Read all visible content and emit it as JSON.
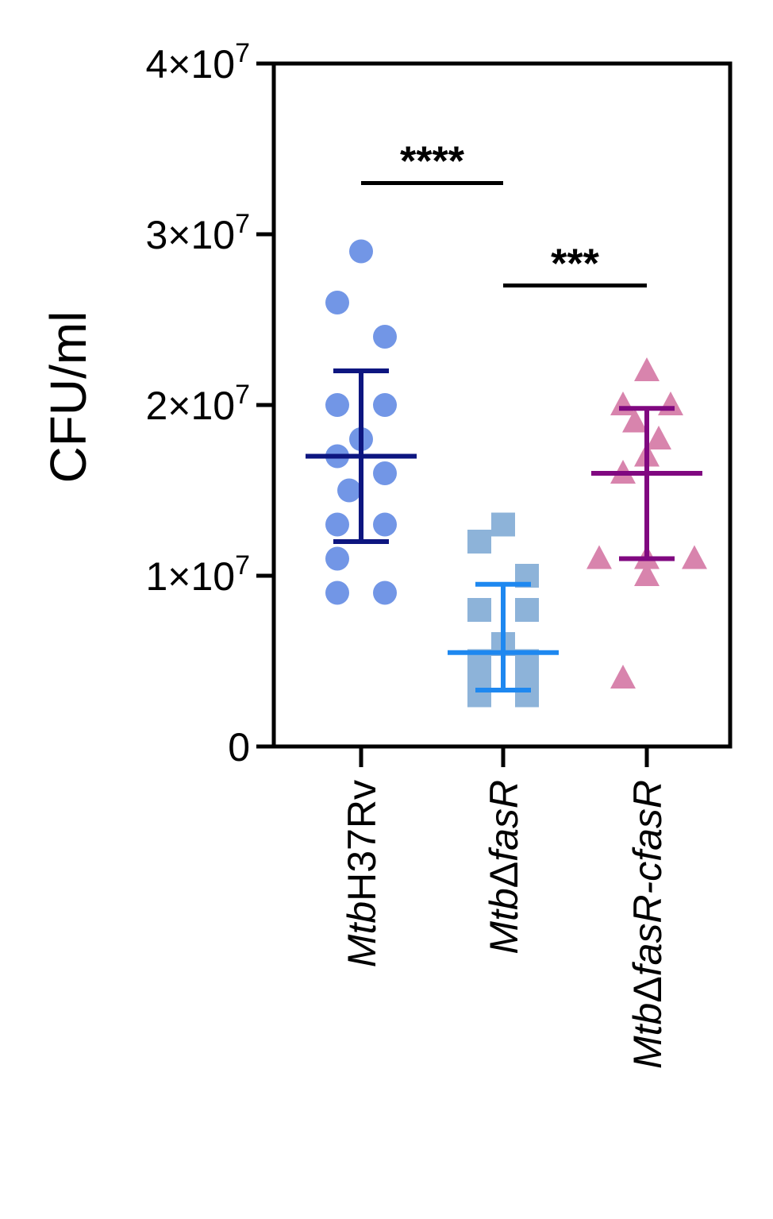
{
  "chart_data": {
    "type": "scatter",
    "ylabel": "CFU/ml",
    "ylim": [
      0,
      40000000
    ],
    "y_ticks": [
      {
        "value": 0,
        "base": "0",
        "exp": ""
      },
      {
        "value": 10000000,
        "base": "1×10",
        "exp": "7"
      },
      {
        "value": 20000000,
        "base": "2×10",
        "exp": "7"
      },
      {
        "value": 30000000,
        "base": "3×10",
        "exp": "7"
      },
      {
        "value": 40000000,
        "base": "4×10",
        "exp": "7"
      }
    ],
    "categories": [
      {
        "prefix": "Mtb",
        "main": "H37Rv",
        "suffix": "",
        "italic": [
          true,
          false,
          false
        ]
      },
      {
        "prefix": "Mtb",
        "main": "Δ",
        "suffix": "fasR",
        "italic": [
          true,
          false,
          true
        ]
      },
      {
        "prefix": "Mtb",
        "main": "Δ",
        "suffix": "fasR-cfasR",
        "italic": [
          true,
          false,
          true
        ]
      }
    ],
    "series": [
      {
        "marker": "circle",
        "color": "#7296e6",
        "summary_color": "#0d1680",
        "mean": 17000000,
        "sd_low": 12000000,
        "sd_high": 22000000,
        "values": [
          29000000,
          26000000,
          24000000,
          20000000,
          20000000,
          18000000,
          17000000,
          16000000,
          15000000,
          13000000,
          13000000,
          11000000,
          9000000,
          9000000
        ]
      },
      {
        "marker": "square",
        "color": "#8db3d9",
        "summary_color": "#1e88f0",
        "mean": 5500000,
        "sd_low": 3300000,
        "sd_high": 9500000,
        "values": [
          13000000,
          12000000,
          10000000,
          8000000,
          8000000,
          6000000,
          5000000,
          5000000,
          4000000,
          4000000,
          3000000,
          3000000
        ]
      },
      {
        "marker": "triangle",
        "color": "#d884ad",
        "summary_color": "#800880",
        "mean": 16000000,
        "sd_low": 11000000,
        "sd_high": 19800000,
        "values": [
          22000000,
          20000000,
          20000000,
          19000000,
          18000000,
          17000000,
          16000000,
          11000000,
          11000000,
          11000000,
          10000000,
          4000000
        ]
      }
    ],
    "significance": [
      {
        "from": 0,
        "to": 1,
        "label": "****",
        "y": 33000000
      },
      {
        "from": 1,
        "to": 2,
        "label": "***",
        "y": 27000000
      }
    ]
  }
}
